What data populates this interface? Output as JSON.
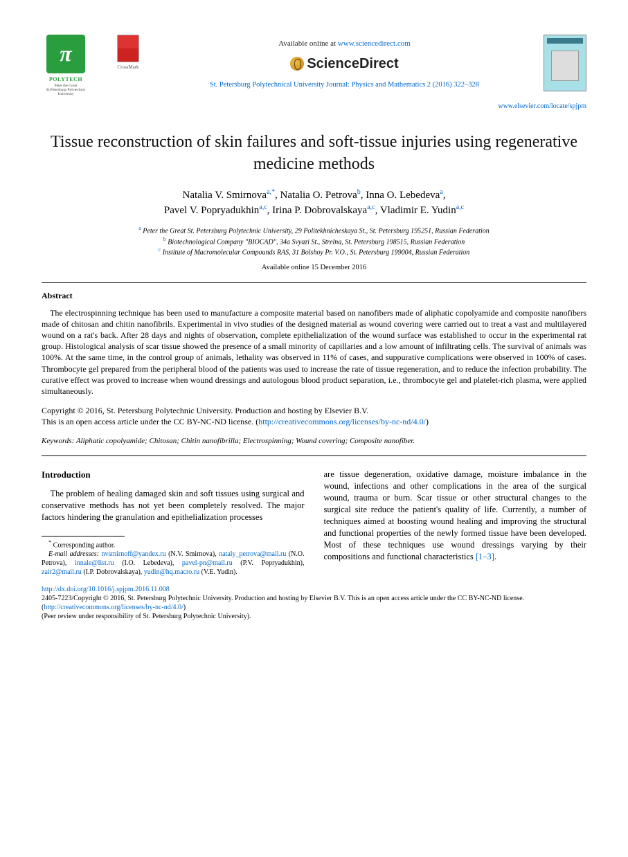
{
  "header": {
    "polytech": {
      "pi": "π",
      "name": "POLYTECH",
      "sub": "Peter the Great\nSt.Petersburg Polytechnic\nUniversity"
    },
    "crossmark": "CrossMark",
    "available_online_prefix": "Available online at ",
    "available_online_url": "www.sciencedirect.com",
    "sciencedirect": "ScienceDirect",
    "journal_ref": "St. Petersburg Polytechnical University Journal: Physics and Mathematics 2 (2016) 322–328",
    "locate": "www.elsevier.com/locate/spjpm"
  },
  "title": "Tissue reconstruction of skin failures and soft-tissue injuries using regenerative medicine methods",
  "authors": [
    {
      "name": "Natalia V. Smirnova",
      "aff": "a,",
      "star": "*"
    },
    {
      "name": "Natalia O. Petrova",
      "aff": "b"
    },
    {
      "name": "Inna O. Lebedeva",
      "aff": "a"
    },
    {
      "name": "Pavel V. Popryadukhin",
      "aff": "a,c"
    },
    {
      "name": "Irina P. Dobrovalskaya",
      "aff": "a,c"
    },
    {
      "name": "Vladimir E. Yudin",
      "aff": "a,c"
    }
  ],
  "affiliations": {
    "a": "Peter the Great St. Petersburg Polytechnic University, 29 Politekhnicheskaya St., St. Petersburg 195251, Russian Federation",
    "b": "Biotechnological Company \"BIOCAD\", 34a Svyazi St., Strelna, St. Petersburg 198515, Russian Federation",
    "c": "Institute of Macromolecular Compounds RAS, 31 Bolshoy Pr. V.O., St. Petersburg 199004, Russian Federation"
  },
  "available_date": "Available online 15 December 2016",
  "abstract": {
    "heading": "Abstract",
    "body": "The electrospinning technique has been used to manufacture a composite material based on nanofibers made of aliphatic copolyamide and composite nanofibers made of chitosan and chitin nanofibrils. Experimental in vivo studies of the designed material as wound covering were carried out to treat a vast and multilayered wound on a rat's back. After 28 days and nights of observation, complete epithelialization of the wound surface was established to occur in the experimental rat group. Histological analysis of scar tissue showed the presence of a small minority of capillaries and a low amount of infiltrating cells. The survival of animals was 100%. At the same time, in the control group of animals, lethality was observed in 11% of cases, and suppurative complications were observed in 100% of cases. Thrombocyte gel prepared from the peripheral blood of the patients was used to increase the rate of tissue regeneration, and to reduce the infection probability. The curative effect was proved to increase when wound dressings and autologous blood product separation, i.e., thrombocyte gel and platelet-rich plasma, were applied simultaneously."
  },
  "copyright": {
    "line1": "Copyright © 2016, St. Petersburg Polytechnic University. Production and hosting by Elsevier B.V.",
    "line2_prefix": "This is an open access article under the CC BY-NC-ND license. (",
    "license_url": "http://creativecommons.org/licenses/by-nc-nd/4.0/",
    "line2_suffix": ")"
  },
  "keywords": {
    "label": "Keywords:",
    "list": "Aliphatic copolyamide; Chitosan; Chitin nanofibrilla; Electrospinning; Wound covering; Composite nanofiber."
  },
  "body": {
    "intro_head": "Introduction",
    "col1": "The problem of healing damaged skin and soft tissues using surgical and conservative methods has not yet been completely resolved. The major factors hindering the granulation and epithelialization processes",
    "col2_p1": "are tissue degeneration, oxidative damage, moisture imbalance in the wound, infections and other complications in the area of the surgical wound, trauma or burn. Scar tissue or other structural changes to the surgical site reduce the patient's quality of life. Currently, a number of techniques aimed at boosting wound healing and improving the structural and functional properties of the newly formed tissue have been developed. Most of these techniques use wound dressings varying by their compositions and functional characteristics ",
    "col2_ref": "[1–3]",
    "col2_p1_end": "."
  },
  "footnotes": {
    "corr": "Corresponding author.",
    "email_label": "E-mail addresses:",
    "emails": [
      {
        "addr": "nvsmirnoff@yandex.ru",
        "who": "(N.V. Smirnova)"
      },
      {
        "addr": "nataly_petrova@mail.ru",
        "who": "(N.O. Petrova)"
      },
      {
        "addr": "innale@list.ru",
        "who": "(I.O. Lebedeva)"
      },
      {
        "addr": "pavel-pn@mail.ru",
        "who": "(P.V. Popryadukhin)"
      },
      {
        "addr": "zair2@mail.ru",
        "who": "(I.P. Dobrovalskaya)"
      },
      {
        "addr": "yudin@hq.macro.ru",
        "who": "(V.E. Yudin)"
      }
    ]
  },
  "doi": {
    "url": "http://dx.doi.org/10.1016/j.spjpm.2016.11.008",
    "issn_line_prefix": "2405-7223/Copyright © 2016, St. Petersburg Polytechnic University. Production and hosting by Elsevier B.V. This is an open access article under the CC BY-NC-ND license. (",
    "license_url": "http://creativecommons.org/licenses/by-nc-nd/4.0/",
    "issn_line_suffix": ")",
    "peer": "(Peer review under responsibility of St. Petersburg Polytechnic University)."
  },
  "colors": {
    "link": "#0066cc",
    "polytech_green": "#2a9d3f",
    "text": "#000000",
    "background": "#ffffff"
  }
}
